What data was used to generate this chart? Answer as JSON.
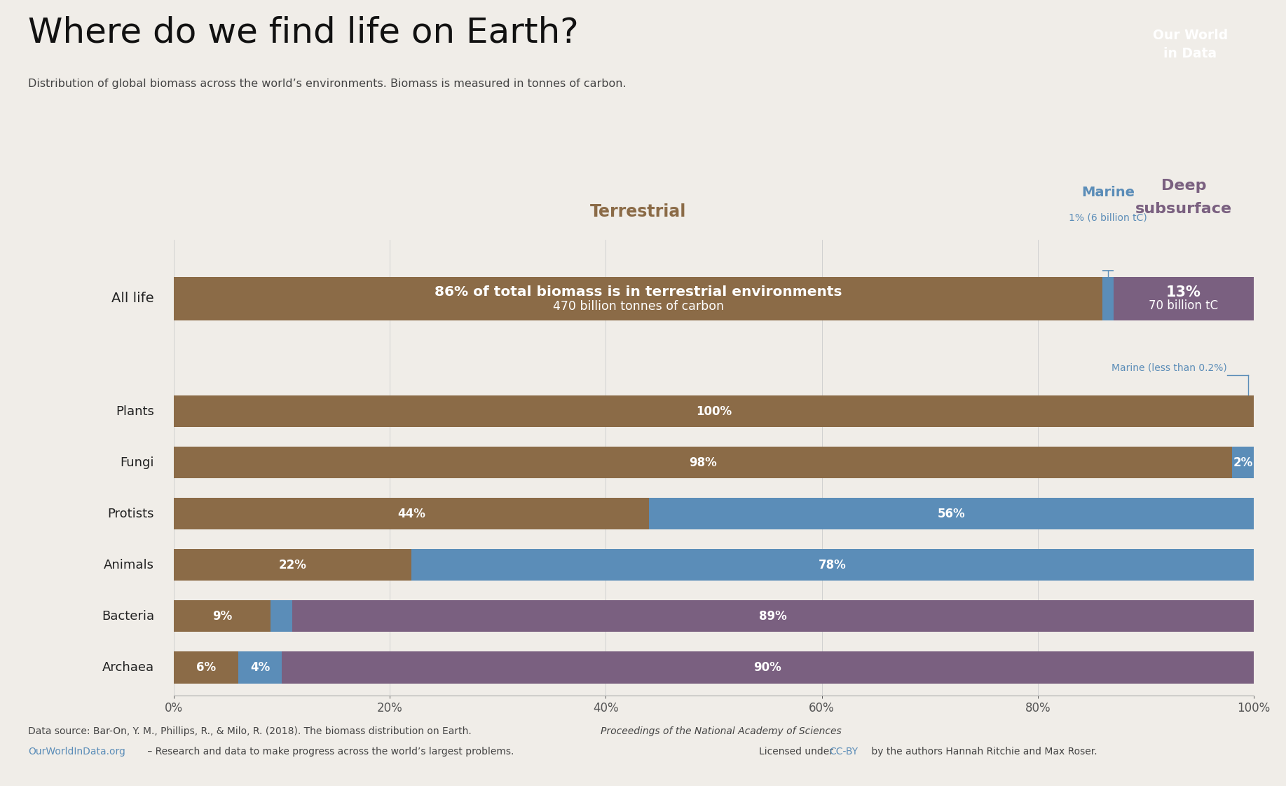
{
  "title": "Where do we find life on Earth?",
  "subtitle": "Distribution of global biomass across the world’s environments. Biomass is measured in tonnes of carbon.",
  "bg_color": "#F0EDE8",
  "colors": {
    "terrestrial": "#8B6B47",
    "marine": "#5B8DB8",
    "deep_subsurface": "#7A6080"
  },
  "all_life": {
    "label": "All life",
    "terrestrial": 86,
    "marine": 1,
    "deep_subsurface": 13,
    "text_main_line1": "86% of total biomass is in terrestrial environments",
    "text_main_line2": "470 billion tonnes of carbon",
    "text_deep_line1": "13%",
    "text_deep_line2": "70 billion tC"
  },
  "rows": [
    {
      "label": "Plants",
      "terrestrial": 100,
      "marine": 0,
      "deep_subsurface": 0,
      "t_text": "100%",
      "m_text": "",
      "d_text": ""
    },
    {
      "label": "Fungi",
      "terrestrial": 98,
      "marine": 2,
      "deep_subsurface": 0,
      "t_text": "98%",
      "m_text": "2%",
      "d_text": ""
    },
    {
      "label": "Protists",
      "terrestrial": 44,
      "marine": 56,
      "deep_subsurface": 0,
      "t_text": "44%",
      "m_text": "56%",
      "d_text": ""
    },
    {
      "label": "Animals",
      "terrestrial": 22,
      "marine": 78,
      "deep_subsurface": 0,
      "t_text": "22%",
      "m_text": "78%",
      "d_text": ""
    },
    {
      "label": "Bacteria",
      "terrestrial": 9,
      "marine": 2,
      "deep_subsurface": 89,
      "t_text": "9%",
      "m_text": "",
      "d_text": "89%"
    },
    {
      "label": "Archaea",
      "terrestrial": 6,
      "marine": 4,
      "deep_subsurface": 90,
      "t_text": "6%",
      "m_text": "4%",
      "d_text": "90%"
    }
  ],
  "footer1": "Data source: Bar-On, Y. M., Phillips, R., & Milo, R. (2018). The biomass distribution on Earth. ",
  "footer1_italic": "Proceedings of the National Academy of Sciences",
  "footer1_end": ".",
  "footer2_link": "OurWorldInData.org",
  "footer2_rest": " – Research and data to make progress across the world’s largest problems.",
  "footer3_pre": "Licensed under ",
  "footer3_link": "CC-BY",
  "footer3_post": " by the authors Hannah Ritchie and Max Roser.",
  "logo_bg": "#C0392B",
  "logo_text": "Our World\nin Data",
  "owid_blue": "#5B8DB8",
  "owid_red": "#C0392B",
  "terrestrial_header": "Terrestrial",
  "marine_header_line1": "Marine",
  "marine_header_line2": "1% (6 billion tC)",
  "deep_header_line1": "Deep",
  "deep_header_line2": "subsurface",
  "marine_annotation": "Marine (less than 0.2%)"
}
